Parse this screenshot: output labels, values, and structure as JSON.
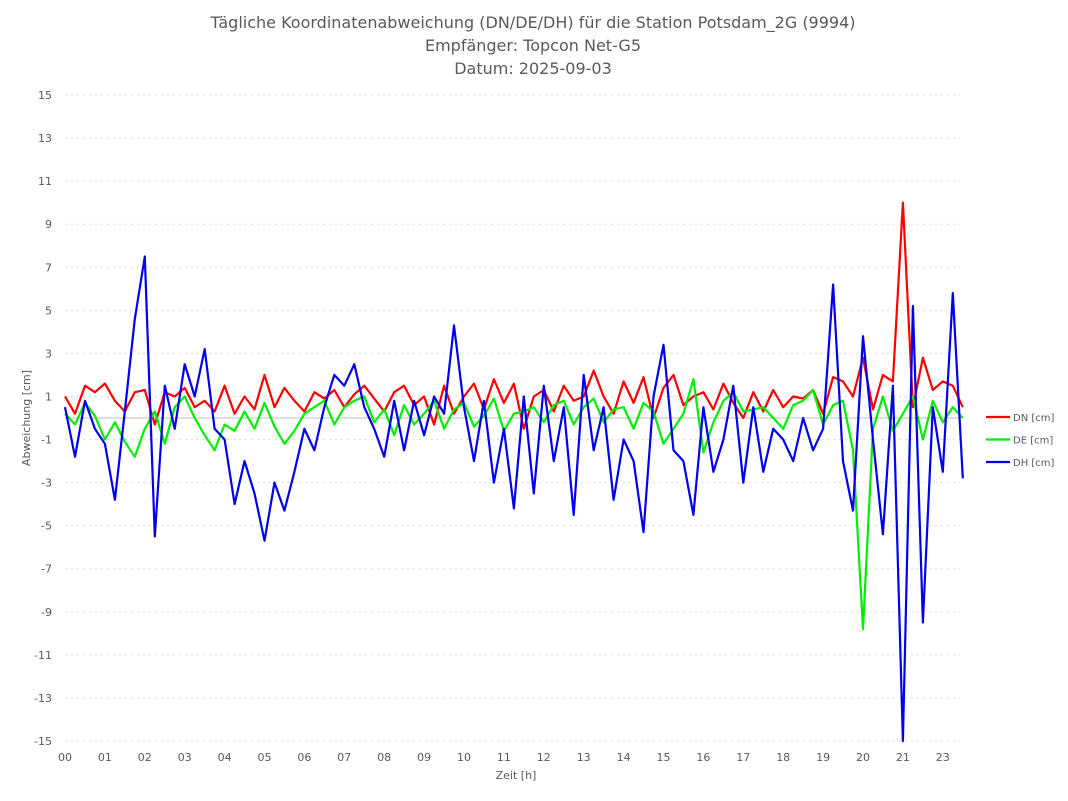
{
  "chart_data": {
    "type": "line",
    "title": [
      "Tägliche Koordinatenabweichung (DN/DE/DH) für die Station Potsdam_2G (9994)",
      "Empfänger: Topcon Net-G5",
      "Datum: 2025-09-03"
    ],
    "xlabel": "Zeit [h]",
    "ylabel": "Abweichung [cm]",
    "ylim": [
      -15,
      15
    ],
    "yticks": [
      "15",
      "13",
      "11",
      "9",
      "7",
      "5",
      "3",
      "1",
      "-1",
      "-3",
      "-5",
      "-7",
      "-9",
      "-11",
      "-13",
      "-15"
    ],
    "ytick_values": [
      15,
      13,
      11,
      9,
      7,
      5,
      3,
      1,
      -1,
      -3,
      -5,
      -7,
      -9,
      -11,
      -13,
      -15
    ],
    "xticks": [
      "00",
      "01",
      "02",
      "03",
      "04",
      "05",
      "06",
      "07",
      "08",
      "09",
      "10",
      "11",
      "12",
      "13",
      "14",
      "15",
      "16",
      "17",
      "18",
      "19",
      "20",
      "21",
      "23"
    ],
    "x_start": 0,
    "x_step": 0.25,
    "x_units": "category positions (tick index)",
    "grid": true,
    "legend_position": "right",
    "series": [
      {
        "name": "DN [cm]",
        "color": "#ff0000",
        "values": [
          1.0,
          0.2,
          1.5,
          1.2,
          1.6,
          0.8,
          0.3,
          1.2,
          1.3,
          -0.3,
          1.2,
          1.0,
          1.4,
          0.5,
          0.8,
          0.3,
          1.5,
          0.2,
          1.0,
          0.4,
          2.0,
          0.5,
          1.4,
          0.8,
          0.3,
          1.2,
          0.9,
          1.3,
          0.5,
          1.1,
          1.5,
          0.9,
          0.3,
          1.2,
          1.5,
          0.6,
          1.0,
          -0.3,
          1.5,
          0.2,
          1.0,
          1.6,
          0.4,
          1.8,
          0.7,
          1.6,
          -0.5,
          1.0,
          1.3,
          0.3,
          1.5,
          0.8,
          1.0,
          2.2,
          1.0,
          0.2,
          1.7,
          0.7,
          1.9,
          0.0,
          1.4,
          2.0,
          0.6,
          1.0,
          1.2,
          0.4,
          1.6,
          0.7,
          0.0,
          1.2,
          0.3,
          1.3,
          0.5,
          1.0,
          0.9,
          1.3,
          0.2,
          1.9,
          1.7,
          1.0,
          2.8,
          0.4,
          2.0,
          1.7,
          10.0,
          0.5,
          2.8,
          1.3,
          1.7,
          1.5,
          0.5
        ]
      },
      {
        "name": "DE [cm]",
        "color": "#00ee00",
        "values": [
          0.2,
          -0.3,
          0.7,
          0.1,
          -1.0,
          -0.2,
          -1.1,
          -1.8,
          -0.5,
          0.3,
          -1.2,
          0.5,
          1.0,
          0.0,
          -0.8,
          -1.5,
          -0.3,
          -0.6,
          0.3,
          -0.5,
          0.7,
          -0.4,
          -1.2,
          -0.6,
          0.2,
          0.5,
          0.8,
          -0.3,
          0.5,
          0.8,
          1.0,
          -0.2,
          0.4,
          -0.8,
          0.6,
          -0.3,
          0.2,
          0.8,
          -0.5,
          0.4,
          0.7,
          -0.4,
          0.1,
          0.9,
          -0.6,
          0.2,
          0.3,
          0.5,
          -0.2,
          0.6,
          0.8,
          -0.3,
          0.5,
          0.9,
          -0.2,
          0.4,
          0.5,
          -0.5,
          0.7,
          0.3,
          -1.2,
          -0.5,
          0.2,
          1.8,
          -1.6,
          -0.2,
          0.8,
          1.2,
          0.3,
          0.4,
          0.5,
          0.0,
          -0.5,
          0.6,
          0.8,
          1.3,
          -0.3,
          0.6,
          0.8,
          -1.5,
          -9.8,
          -0.5,
          1.0,
          -0.6,
          0.2,
          1.0,
          -1.0,
          0.8,
          -0.2,
          0.5,
          0.0
        ]
      },
      {
        "name": "DH [cm]",
        "color": "#0000ee",
        "values": [
          0.5,
          -1.8,
          0.8,
          -0.5,
          -1.2,
          -3.8,
          0.3,
          4.6,
          7.5,
          -5.5,
          1.5,
          -0.5,
          2.5,
          1.0,
          3.2,
          -0.5,
          -1.0,
          -4.0,
          -2.0,
          -3.5,
          -5.7,
          -3.0,
          -4.3,
          -2.5,
          -0.5,
          -1.5,
          0.5,
          2.0,
          1.5,
          2.5,
          0.5,
          -0.5,
          -1.8,
          0.8,
          -1.5,
          0.8,
          -0.8,
          1.0,
          0.2,
          4.3,
          0.5,
          -2.0,
          0.8,
          -3.0,
          -0.5,
          -4.2,
          1.0,
          -3.5,
          1.5,
          -2.0,
          0.5,
          -4.5,
          2.0,
          -1.5,
          0.5,
          -3.8,
          -1.0,
          -2.0,
          -5.3,
          1.0,
          3.4,
          -1.5,
          -2.0,
          -4.5,
          0.5,
          -2.5,
          -1.0,
          1.5,
          -3.0,
          0.5,
          -2.5,
          -0.5,
          -1.0,
          -2.0,
          0.0,
          -1.5,
          -0.5,
          6.2,
          -2.0,
          -4.3,
          3.8,
          -1.0,
          -5.4,
          1.5,
          -15.0,
          5.2,
          -9.5,
          0.5,
          -2.5,
          5.8,
          -2.8
        ]
      }
    ]
  }
}
